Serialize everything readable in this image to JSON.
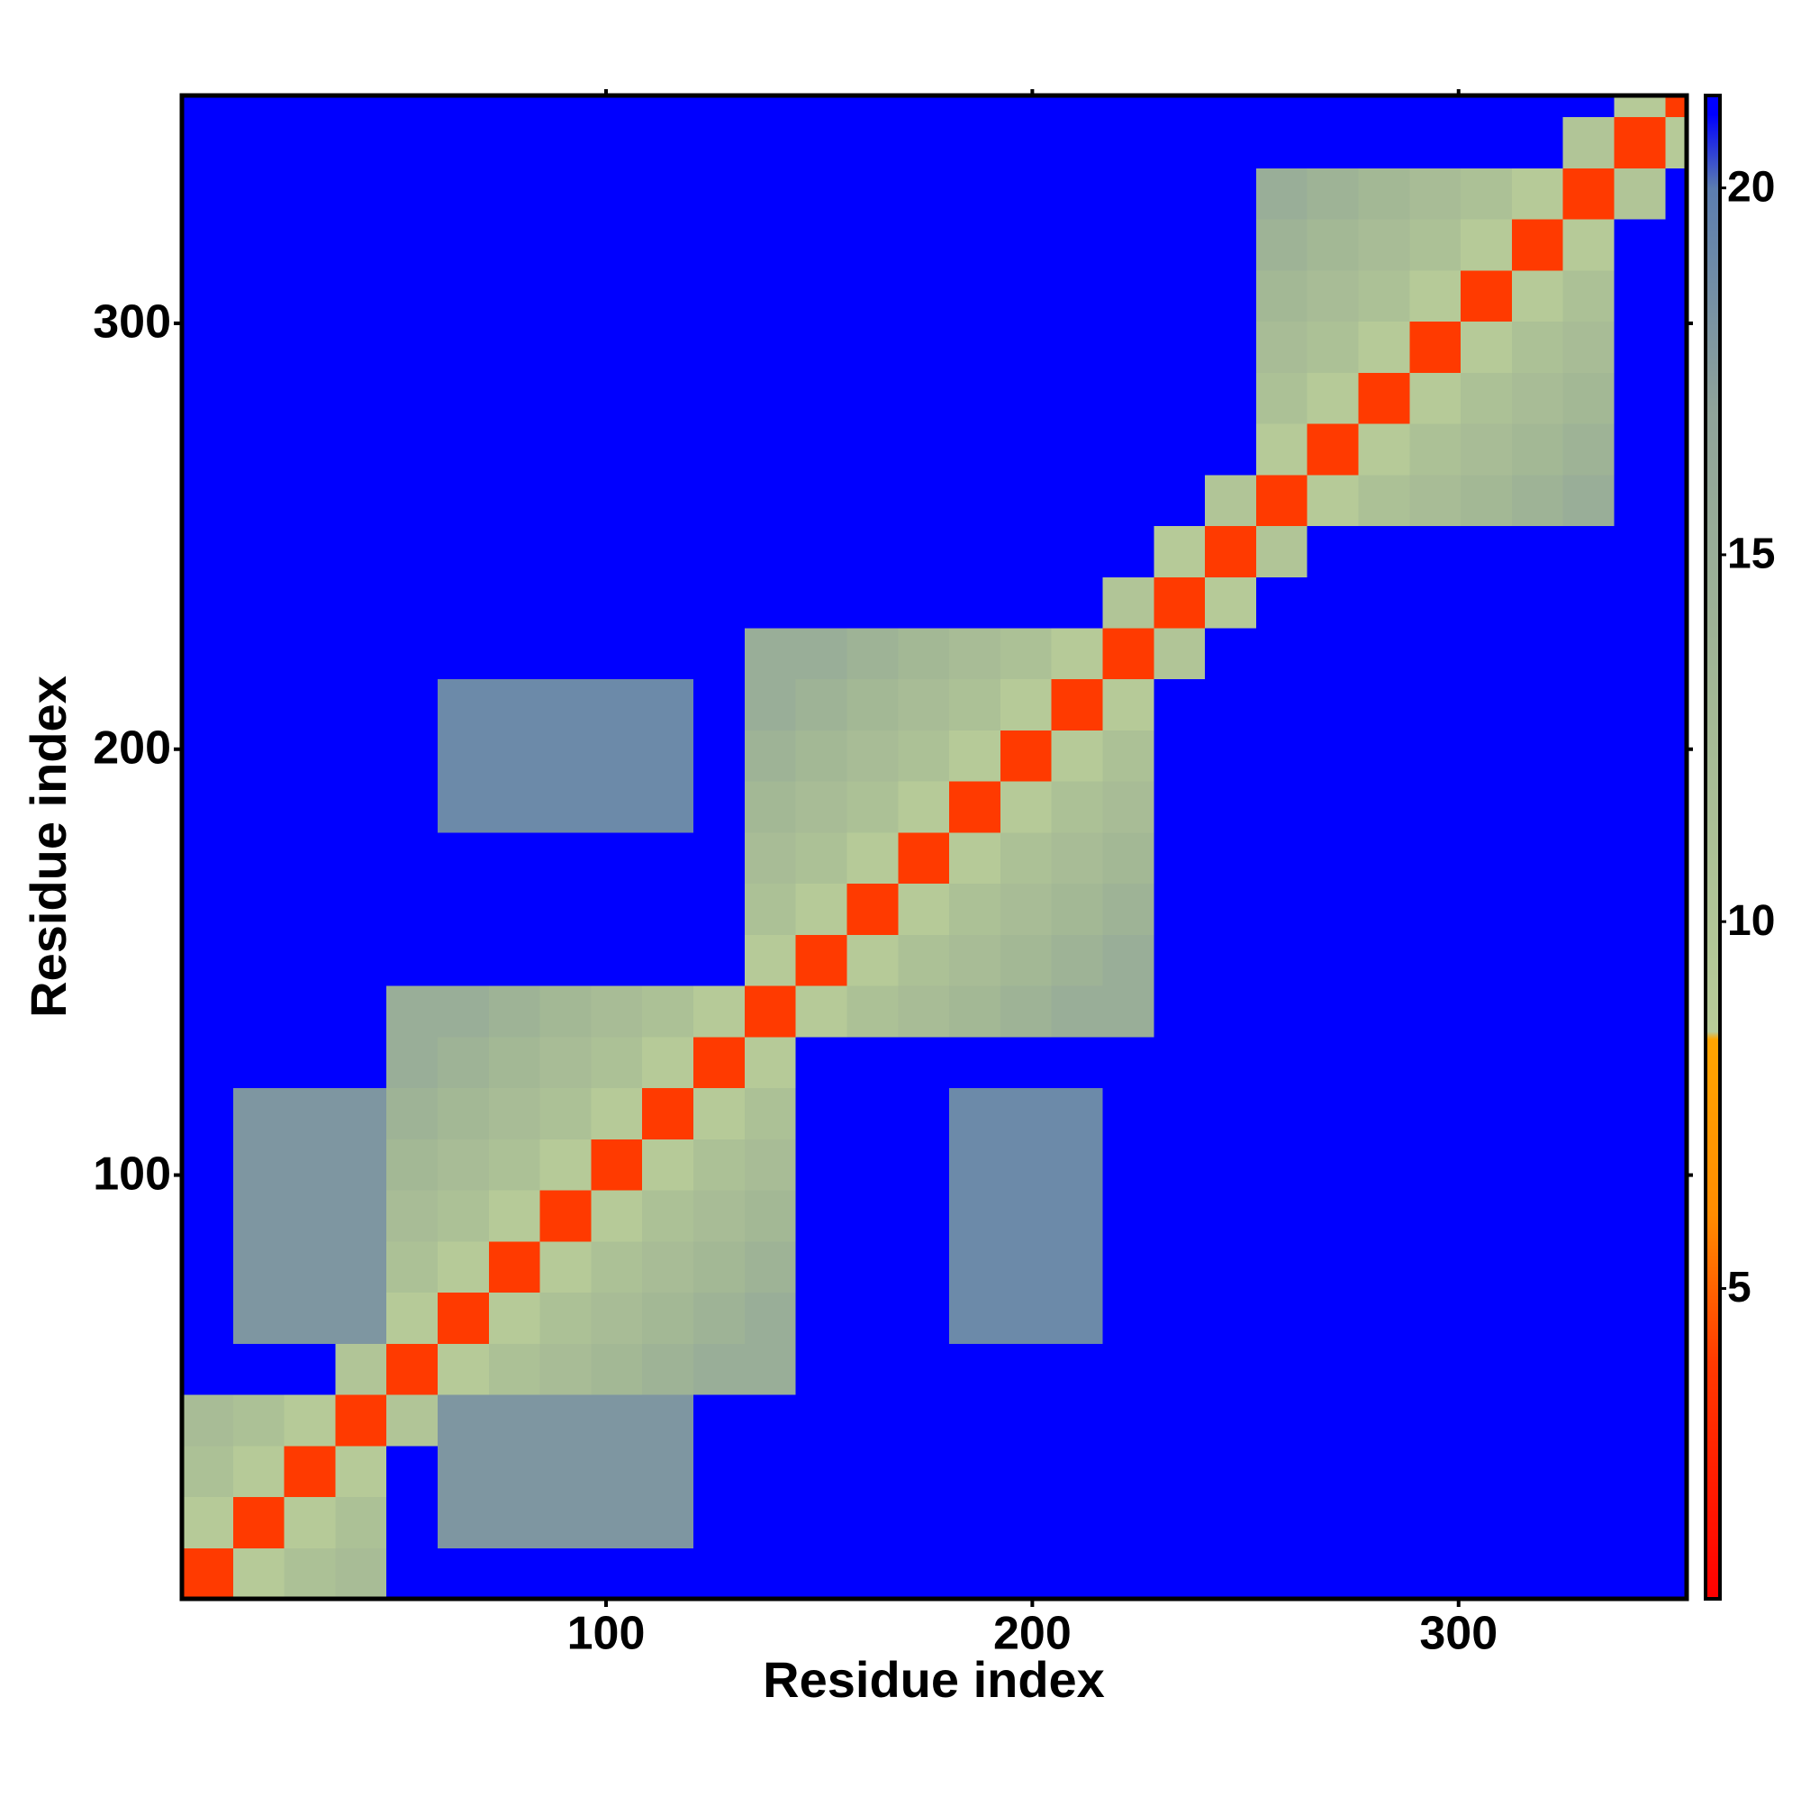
{
  "chart_data": {
    "type": "heatmap",
    "x_label": "Residue index",
    "y_label": "Residue index",
    "xlim": [
      0.5,
      353.5
    ],
    "ylim": [
      0.5,
      353.5
    ],
    "xticks": [
      100,
      200,
      300
    ],
    "yticks": [
      100,
      200,
      300
    ],
    "x_edges": [
      0.5,
      12.5,
      24.5,
      36.5,
      48.5,
      60.5,
      72.5,
      84.5,
      96.5,
      108.5,
      120.5,
      132.5,
      144.5,
      156.5,
      168.5,
      180.5,
      192.5,
      204.5,
      216.5,
      228.5,
      240.5,
      252.5,
      264.5,
      276.5,
      288.5,
      300.5,
      312.5,
      324.5,
      336.5,
      348.5,
      353.5
    ],
    "y_edges": [
      0.5,
      12.5,
      24.5,
      36.5,
      48.5,
      60.5,
      72.5,
      84.5,
      96.5,
      108.5,
      120.5,
      132.5,
      144.5,
      156.5,
      168.5,
      180.5,
      192.5,
      204.5,
      216.5,
      228.5,
      240.5,
      252.5,
      264.5,
      276.5,
      288.5,
      300.5,
      312.5,
      324.5,
      336.5,
      348.5,
      353.5
    ],
    "z": [
      [
        4,
        9,
        11,
        12,
        21,
        21,
        21,
        21,
        21,
        21,
        21,
        21,
        21,
        21,
        21,
        21,
        21,
        21,
        21,
        21,
        21,
        21,
        21,
        21,
        21,
        21,
        21,
        21,
        21,
        21
      ],
      [
        9,
        4,
        9,
        11,
        21,
        18,
        18,
        18,
        18,
        18,
        21,
        21,
        21,
        21,
        21,
        21,
        21,
        21,
        21,
        21,
        21,
        21,
        21,
        21,
        21,
        21,
        21,
        21,
        21,
        21
      ],
      [
        11,
        9,
        4,
        9,
        21,
        18,
        18,
        18,
        18,
        18,
        21,
        21,
        21,
        21,
        21,
        21,
        21,
        21,
        21,
        21,
        21,
        21,
        21,
        21,
        21,
        21,
        21,
        21,
        21,
        21
      ],
      [
        12,
        11,
        9,
        4,
        10,
        18,
        18,
        18,
        18,
        18,
        21,
        21,
        21,
        21,
        21,
        21,
        21,
        21,
        21,
        21,
        21,
        21,
        21,
        21,
        21,
        21,
        21,
        21,
        21,
        21
      ],
      [
        21,
        21,
        21,
        10,
        4,
        9,
        11,
        12,
        13,
        14,
        15,
        15,
        21,
        21,
        21,
        21,
        21,
        21,
        21,
        21,
        21,
        21,
        21,
        21,
        21,
        21,
        21,
        21,
        21,
        21
      ],
      [
        21,
        18,
        18,
        18,
        9,
        4,
        9,
        11,
        12,
        13,
        14,
        15,
        21,
        21,
        21,
        19,
        19,
        19,
        21,
        21,
        21,
        21,
        21,
        21,
        21,
        21,
        21,
        21,
        21,
        21
      ],
      [
        21,
        18,
        18,
        18,
        11,
        9,
        4,
        9,
        11,
        12,
        13,
        14,
        21,
        21,
        21,
        19,
        19,
        19,
        21,
        21,
        21,
        21,
        21,
        21,
        21,
        21,
        21,
        21,
        21,
        21
      ],
      [
        21,
        18,
        18,
        18,
        12,
        11,
        9,
        4,
        9,
        11,
        12,
        13,
        21,
        21,
        21,
        19,
        19,
        19,
        21,
        21,
        21,
        21,
        21,
        21,
        21,
        21,
        21,
        21,
        21,
        21
      ],
      [
        21,
        18,
        18,
        18,
        13,
        12,
        11,
        9,
        4,
        9,
        11,
        12,
        21,
        21,
        21,
        19,
        19,
        19,
        21,
        21,
        21,
        21,
        21,
        21,
        21,
        21,
        21,
        21,
        21,
        21
      ],
      [
        21,
        18,
        18,
        18,
        14,
        13,
        12,
        11,
        9,
        4,
        9,
        11,
        21,
        21,
        21,
        19,
        19,
        19,
        21,
        21,
        21,
        21,
        21,
        21,
        21,
        21,
        21,
        21,
        21,
        21
      ],
      [
        21,
        21,
        21,
        21,
        15,
        14,
        13,
        12,
        11,
        9,
        4,
        9,
        21,
        21,
        21,
        21,
        21,
        21,
        21,
        21,
        21,
        21,
        21,
        21,
        21,
        21,
        21,
        21,
        21,
        21
      ],
      [
        21,
        21,
        21,
        21,
        15,
        15,
        14,
        13,
        12,
        11,
        9,
        4,
        9,
        11,
        12,
        13,
        14,
        15,
        15,
        21,
        21,
        21,
        21,
        21,
        21,
        21,
        21,
        21,
        21,
        21
      ],
      [
        21,
        21,
        21,
        21,
        21,
        21,
        21,
        21,
        21,
        21,
        21,
        9,
        4,
        9,
        11,
        12,
        13,
        14,
        15,
        21,
        21,
        21,
        21,
        21,
        21,
        21,
        21,
        21,
        21,
        21
      ],
      [
        21,
        21,
        21,
        21,
        21,
        21,
        21,
        21,
        21,
        21,
        21,
        11,
        9,
        4,
        9,
        11,
        12,
        13,
        14,
        21,
        21,
        21,
        21,
        21,
        21,
        21,
        21,
        21,
        21,
        21
      ],
      [
        21,
        21,
        21,
        21,
        21,
        21,
        21,
        21,
        21,
        21,
        21,
        12,
        11,
        9,
        4,
        9,
        11,
        12,
        13,
        21,
        21,
        21,
        21,
        21,
        21,
        21,
        21,
        21,
        21,
        21
      ],
      [
        21,
        21,
        21,
        21,
        21,
        19,
        19,
        19,
        19,
        19,
        21,
        13,
        12,
        11,
        9,
        4,
        9,
        11,
        12,
        21,
        21,
        21,
        21,
        21,
        21,
        21,
        21,
        21,
        21,
        21
      ],
      [
        21,
        21,
        21,
        21,
        21,
        19,
        19,
        19,
        19,
        19,
        21,
        14,
        13,
        12,
        11,
        9,
        4,
        9,
        11,
        21,
        21,
        21,
        21,
        21,
        21,
        21,
        21,
        21,
        21,
        21
      ],
      [
        21,
        21,
        21,
        21,
        21,
        19,
        19,
        19,
        19,
        19,
        21,
        15,
        14,
        13,
        12,
        11,
        9,
        4,
        9,
        21,
        21,
        21,
        21,
        21,
        21,
        21,
        21,
        21,
        21,
        21
      ],
      [
        21,
        21,
        21,
        21,
        21,
        21,
        21,
        21,
        21,
        21,
        21,
        15,
        15,
        14,
        13,
        12,
        11,
        9,
        4,
        10,
        21,
        21,
        21,
        21,
        21,
        21,
        21,
        21,
        21,
        21
      ],
      [
        21,
        21,
        21,
        21,
        21,
        21,
        21,
        21,
        21,
        21,
        21,
        21,
        21,
        21,
        21,
        21,
        21,
        21,
        10,
        4,
        9,
        21,
        21,
        21,
        21,
        21,
        21,
        21,
        21,
        21
      ],
      [
        21,
        21,
        21,
        21,
        21,
        21,
        21,
        21,
        21,
        21,
        21,
        21,
        21,
        21,
        21,
        21,
        21,
        21,
        21,
        9,
        4,
        10,
        21,
        21,
        21,
        21,
        21,
        21,
        21,
        21
      ],
      [
        21,
        21,
        21,
        21,
        21,
        21,
        21,
        21,
        21,
        21,
        21,
        21,
        21,
        21,
        21,
        21,
        21,
        21,
        21,
        21,
        10,
        4,
        9,
        11,
        12,
        13,
        14,
        15,
        21,
        21
      ],
      [
        21,
        21,
        21,
        21,
        21,
        21,
        21,
        21,
        21,
        21,
        21,
        21,
        21,
        21,
        21,
        21,
        21,
        21,
        21,
        21,
        21,
        9,
        4,
        9,
        11,
        12,
        13,
        14,
        21,
        21
      ],
      [
        21,
        21,
        21,
        21,
        21,
        21,
        21,
        21,
        21,
        21,
        21,
        21,
        21,
        21,
        21,
        21,
        21,
        21,
        21,
        21,
        21,
        11,
        9,
        4,
        9,
        11,
        12,
        13,
        21,
        21
      ],
      [
        21,
        21,
        21,
        21,
        21,
        21,
        21,
        21,
        21,
        21,
        21,
        21,
        21,
        21,
        21,
        21,
        21,
        21,
        21,
        21,
        21,
        12,
        11,
        9,
        4,
        9,
        11,
        12,
        21,
        21
      ],
      [
        21,
        21,
        21,
        21,
        21,
        21,
        21,
        21,
        21,
        21,
        21,
        21,
        21,
        21,
        21,
        21,
        21,
        21,
        21,
        21,
        21,
        13,
        12,
        11,
        9,
        4,
        9,
        11,
        21,
        21
      ],
      [
        21,
        21,
        21,
        21,
        21,
        21,
        21,
        21,
        21,
        21,
        21,
        21,
        21,
        21,
        21,
        21,
        21,
        21,
        21,
        21,
        21,
        14,
        13,
        12,
        11,
        9,
        4,
        9,
        21,
        21
      ],
      [
        21,
        21,
        21,
        21,
        21,
        21,
        21,
        21,
        21,
        21,
        21,
        21,
        21,
        21,
        21,
        21,
        21,
        21,
        21,
        21,
        21,
        15,
        14,
        13,
        12,
        11,
        9,
        4,
        10,
        21
      ],
      [
        21,
        21,
        21,
        21,
        21,
        21,
        21,
        21,
        21,
        21,
        21,
        21,
        21,
        21,
        21,
        21,
        21,
        21,
        21,
        21,
        21,
        21,
        21,
        21,
        21,
        21,
        21,
        10,
        4,
        9
      ],
      [
        21,
        21,
        21,
        21,
        21,
        21,
        21,
        21,
        21,
        21,
        21,
        21,
        21,
        21,
        21,
        21,
        21,
        21,
        21,
        21,
        21,
        21,
        21,
        21,
        21,
        21,
        21,
        21,
        9,
        4
      ]
    ],
    "colorbar": {
      "lim": [
        0.77,
        21.26
      ],
      "ticks": [
        5,
        10,
        15,
        20
      ],
      "stops": [
        {
          "value": 0.77,
          "color": "#ff0000"
        },
        {
          "value": 4,
          "color": "#ff3a00"
        },
        {
          "value": 6,
          "color": "#ff8c00"
        },
        {
          "value": 8.4,
          "color": "#ffa500"
        },
        {
          "value": 8.5,
          "color": "#b8cc98"
        },
        {
          "value": 13,
          "color": "#a3b895"
        },
        {
          "value": 17,
          "color": "#8fa39a"
        },
        {
          "value": 20,
          "color": "#5b7db0"
        },
        {
          "value": 21,
          "color": "#0000ff"
        },
        {
          "value": 21.26,
          "color": "#0000ff"
        }
      ]
    }
  }
}
